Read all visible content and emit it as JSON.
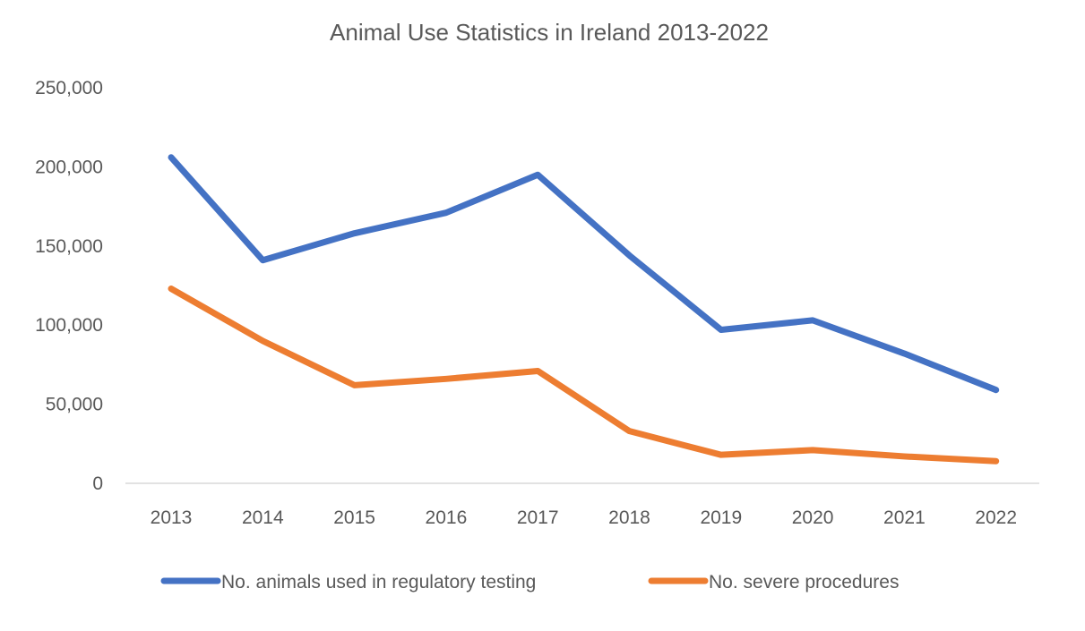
{
  "chart_data": {
    "type": "line",
    "title": "Animal Use Statistics in Ireland 2013-2022",
    "xlabel": "",
    "ylabel": "",
    "categories": [
      "2013",
      "2014",
      "2015",
      "2016",
      "2017",
      "2018",
      "2019",
      "2020",
      "2021",
      "2022"
    ],
    "ylim": [
      0,
      250000
    ],
    "yticks": [
      0,
      50000,
      100000,
      150000,
      200000,
      250000
    ],
    "ytick_labels": [
      "0",
      "50,000",
      "100,000",
      "150,000",
      "200,000",
      "250,000"
    ],
    "grid": false,
    "legend_position": "bottom",
    "series": [
      {
        "name": "No. animals used in regulatory testing",
        "color": "#4472C4",
        "values": [
          206000,
          141000,
          158000,
          171000,
          195000,
          144000,
          97000,
          103000,
          82000,
          59000
        ]
      },
      {
        "name": "No. severe procedures",
        "color": "#ED7D31",
        "values": [
          123000,
          90000,
          62000,
          66000,
          71000,
          33000,
          18000,
          21000,
          17000,
          14000
        ]
      }
    ]
  }
}
